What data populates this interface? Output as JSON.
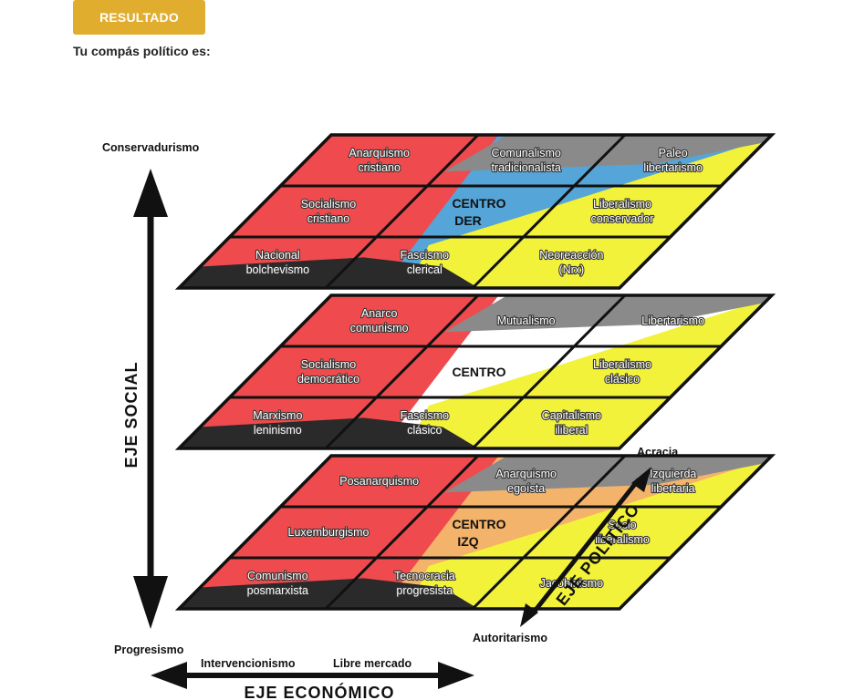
{
  "header": {
    "button_label": "RESULTADO",
    "subtitle": "Tu compás político es:"
  },
  "colors": {
    "red": "#ef4a4d",
    "yellow": "#f2f23a",
    "gray": "#8a8a8a",
    "dark": "#2a2a2a",
    "blue": "#56a5d8",
    "orange": "#f4b36a",
    "white": "#ffffff",
    "button": "#e1ad2e"
  },
  "axes": {
    "social_title": "EJE SOCIAL",
    "social_top": "Conservadurismo",
    "social_bottom": "Progresismo",
    "economic_title": "EJE ECONÓMICO",
    "economic_left": "Intervencionismo",
    "economic_right": "Libre mercado",
    "political_title": "EJE POLÍTICO",
    "political_top": "Acracia",
    "political_bottom": "Autoritarismo"
  },
  "layers": [
    {
      "name": "conservador",
      "center_fill": "blue",
      "center_lines": [
        "CENTRO",
        "DER"
      ],
      "cells": [
        [
          "Anarquismo\ncristiano",
          "Comunalismo\ntradicionalista",
          "Paleo\nlibertarismo"
        ],
        [
          "Socialismo\ncristiano",
          "",
          "Liberalismo\nconservador"
        ],
        [
          "Nacional\nbolchevismo",
          "Fascismo\nclerical",
          "Neoreacción\n(Nrx)"
        ]
      ]
    },
    {
      "name": "centro",
      "center_fill": "white",
      "center_lines": [
        "CENTRO"
      ],
      "cells": [
        [
          "Anarco\ncomunismo",
          "Mutualismo",
          "Libertarismo"
        ],
        [
          "Socialismo\ndemocrático",
          "",
          "Liberalismo\nclásico"
        ],
        [
          "Marxismo\nleninismo",
          "Fascismo\nclásico",
          "Capitalismo\niliberal"
        ]
      ]
    },
    {
      "name": "progresista",
      "center_fill": "orange",
      "center_lines": [
        "CENTRO",
        "IZQ"
      ],
      "cells": [
        [
          "Posanarquismo",
          "Anarquismo\negoísta",
          "Izquierda\nlibertaria"
        ],
        [
          "Luxemburgismo",
          "",
          "Socio\nliberalismo"
        ],
        [
          "Comunismo\nposmarxista",
          "Tecnocracia\nprogresista",
          "Jacobinismo"
        ]
      ]
    }
  ]
}
